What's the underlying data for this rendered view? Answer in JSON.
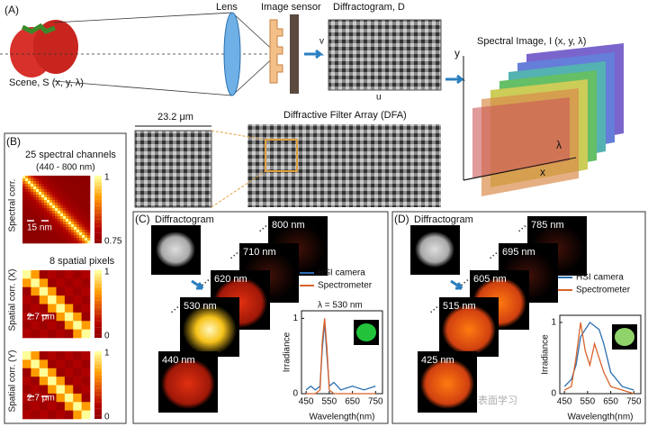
{
  "panel_a": {
    "label": "(A)",
    "scene": "Scene, S (x, y, λ)",
    "lens": "Lens",
    "image_sensor": "Image sensor",
    "diffractogram": "Diffractogram, D",
    "axis_v": "v",
    "axis_u": "u",
    "spectral_image": "Spectral Image, I (x, y, λ)",
    "axis_y": "y",
    "axis_lambda": "λ",
    "axis_x": "x",
    "scale": "23.2 μm",
    "dfa": "Diffractive Filter Array (DFA)"
  },
  "panel_b": {
    "label": "(B)",
    "title": "25 spectral channels",
    "range": "(440 - 800 nm)",
    "spectral_corr": "Spectral corr.",
    "spectral_marker": "15 nm",
    "subtitle": "8 spatial pixels",
    "spatial_x": "Spatial corr. (X)",
    "spatial_y": "Spatial corr. (Y)",
    "spatial_marker": "2.7 μm",
    "colorbar_ticks": [
      [
        1,
        0.75
      ],
      [
        1,
        0
      ],
      [
        1,
        0
      ]
    ]
  },
  "panel_c": {
    "label": "(C)",
    "diffractogram": "Diffractogram",
    "frames": [
      "800 nm",
      "710 nm",
      "620 nm",
      "530 nm",
      "440 nm"
    ]
  },
  "panel_d": {
    "label": "(D)",
    "diffractogram": "Diffractogram",
    "frames": [
      "785 nm",
      "695 nm",
      "605 nm",
      "515 nm",
      "425 nm"
    ]
  },
  "watermark": "超表面学习",
  "chart_data": [
    {
      "type": "line",
      "annotation": "λ = 530 nm",
      "x_label": "Wavelength(nm)",
      "y_label": "Irradiance",
      "x": [
        450,
        470,
        490,
        510,
        520,
        530,
        540,
        550,
        570,
        600,
        650,
        700,
        750
      ],
      "series": [
        {
          "name": "HSI camera",
          "color": "#2a6fb0",
          "values": [
            0.05,
            0.1,
            0.05,
            0.1,
            0.6,
            0.95,
            0.5,
            0.1,
            0.15,
            0.05,
            0.1,
            0.05,
            0.1
          ]
        },
        {
          "name": "Spectrometer",
          "color": "#d9622b",
          "values": [
            0,
            0,
            0,
            0.05,
            0.7,
            1,
            0.6,
            0.05,
            0,
            0,
            0,
            0,
            0
          ]
        }
      ],
      "xlim": [
        430,
        780
      ],
      "ylim": [
        0,
        1.1
      ],
      "xticks": [
        450,
        550,
        650,
        750
      ],
      "yticks": [
        0,
        1
      ],
      "inset_color": "#22c33a"
    },
    {
      "type": "line",
      "x_label": "Wavelength(nm)",
      "y_label": "Irradiance",
      "x": [
        450,
        480,
        500,
        520,
        540,
        560,
        580,
        600,
        620,
        650,
        700,
        750
      ],
      "series": [
        {
          "name": "HSI camera",
          "color": "#2a6fb0",
          "values": [
            0.1,
            0.2,
            0.4,
            0.8,
            0.9,
            1,
            0.95,
            0.9,
            0.7,
            0.3,
            0.1,
            0.05
          ]
        },
        {
          "name": "Spectrometer",
          "color": "#d9622b",
          "values": [
            0.05,
            0.1,
            0.5,
            1,
            0.6,
            0.4,
            0.7,
            0.5,
            0.3,
            0.1,
            0.05,
            0
          ]
        }
      ],
      "xlim": [
        430,
        780
      ],
      "ylim": [
        0,
        1.1
      ],
      "xticks": [
        450,
        550,
        650,
        750
      ],
      "yticks": [
        0,
        1
      ],
      "inset_color": "#8fd36a"
    }
  ]
}
